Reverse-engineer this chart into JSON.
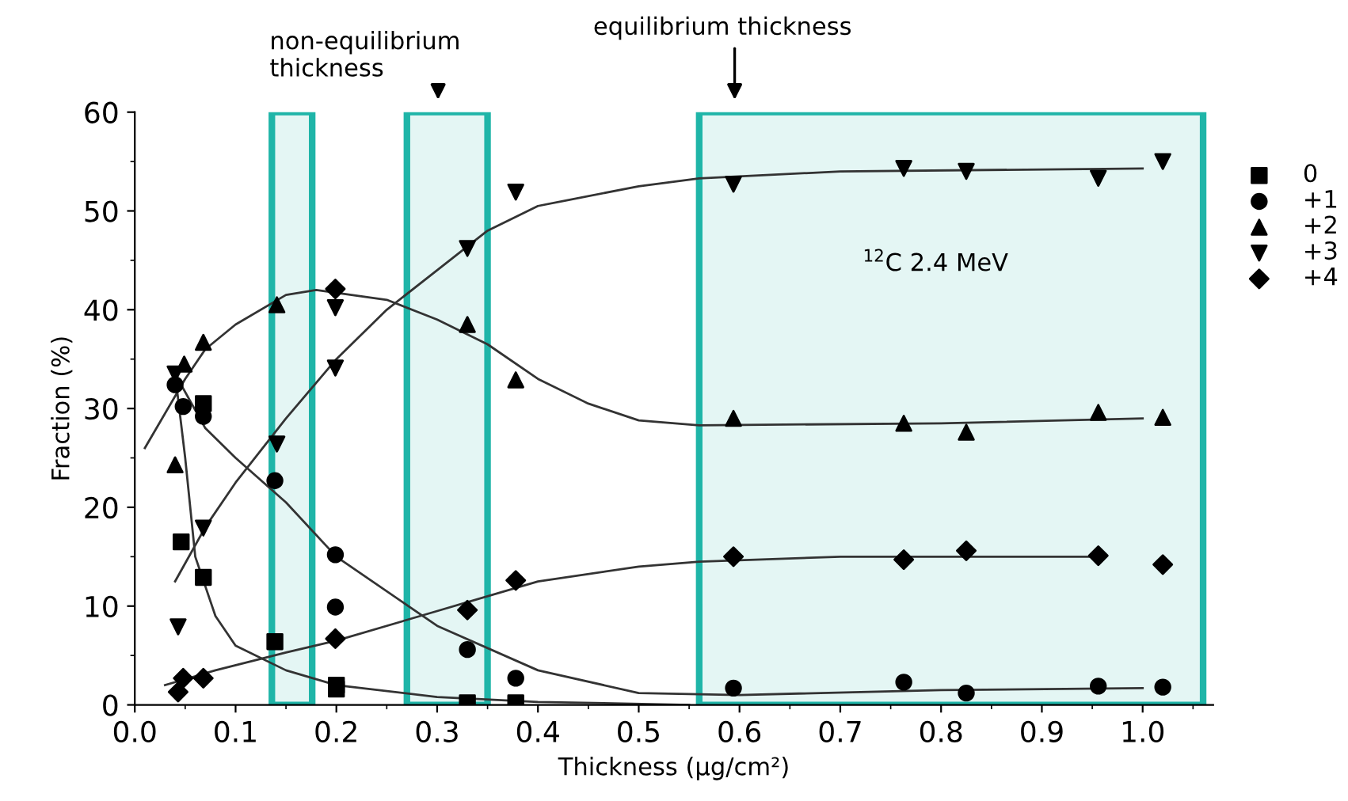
{
  "chart_data": {
    "type": "scatter",
    "xlabel": "Thickness (µg/cm²)",
    "ylabel": "Fraction (%)",
    "xlim": [
      0,
      1.07
    ],
    "ylim": [
      0,
      60
    ],
    "xticks": [
      {
        "value": 0,
        "label": "0.0"
      },
      0.1,
      0.2,
      0.3,
      0.4,
      0.5,
      0.6,
      0.7,
      0.8,
      0.9,
      {
        "value": 1,
        "label": "1.0"
      }
    ],
    "yticks": [
      0,
      10,
      20,
      30,
      40,
      50,
      60
    ],
    "legend": "right",
    "grid": false,
    "series": [
      {
        "name": "0",
        "color": "#000000",
        "marker": "square",
        "x": [
          0.046,
          0.068,
          0.068,
          0.139,
          0.2,
          0.2,
          0.33,
          0.378
        ],
        "values": [
          16.5,
          12.9,
          30.5,
          6.4,
          1.6,
          2.0,
          0.2,
          0.2
        ]
      },
      {
        "name": "+1",
        "color": "#000000",
        "marker": "circle",
        "x": [
          0.04,
          0.048,
          0.068,
          0.139,
          0.199,
          0.199,
          0.33,
          0.378,
          0.594,
          0.763,
          0.825,
          0.956,
          1.02
        ],
        "values": [
          32.4,
          30.2,
          29.2,
          22.7,
          15.2,
          9.9,
          5.6,
          2.7,
          1.7,
          2.3,
          1.2,
          1.9,
          1.8
        ]
      },
      {
        "name": "+2",
        "color": "#000000",
        "marker": "triangle",
        "x": [
          0.04,
          0.049,
          0.068,
          0.141,
          0.33,
          0.378,
          0.594,
          0.763,
          0.825,
          0.956,
          1.02
        ],
        "values": [
          24.3,
          34.5,
          36.7,
          40.5,
          38.5,
          32.9,
          29.0,
          28.5,
          27.6,
          29.6,
          29.1
        ]
      },
      {
        "name": "+3",
        "color": "#000000",
        "marker": "triangle_down",
        "x": [
          0.04,
          0.043,
          0.068,
          0.141,
          0.199,
          0.199,
          0.33,
          0.378,
          0.594,
          0.763,
          0.825,
          0.956,
          1.02
        ],
        "values": [
          33.5,
          7.9,
          17.9,
          26.4,
          34.1,
          40.2,
          46.2,
          51.9,
          52.7,
          54.3,
          54.0,
          53.3,
          55.0
        ]
      },
      {
        "name": "+4",
        "color": "#000000",
        "marker": "diamond",
        "x": [
          0.043,
          0.048,
          0.068,
          0.199,
          0.199,
          0.33,
          0.378,
          0.594,
          0.763,
          0.825,
          0.956,
          1.02
        ],
        "values": [
          1.3,
          2.7,
          2.7,
          6.7,
          42.1,
          9.6,
          12.6,
          15.0,
          14.7,
          15.6,
          15.1,
          14.2
        ]
      },
      {
        "type": "line",
        "color": "#333333",
        "x": [
          0.04,
          0.05,
          0.06,
          0.08,
          0.1,
          0.15,
          0.2,
          0.3,
          0.4,
          0.55
        ],
        "values": [
          33.5,
          25,
          15,
          9,
          6,
          3.5,
          2,
          0.8,
          0.3,
          0
        ]
      },
      {
        "type": "line",
        "color": "#333333",
        "x": [
          0.04,
          0.07,
          0.1,
          0.15,
          0.2,
          0.3,
          0.4,
          0.5,
          0.6,
          0.8,
          1.0
        ],
        "values": [
          33.5,
          28,
          25,
          20.5,
          15,
          8,
          3.5,
          1.2,
          1,
          1.5,
          1.7
        ]
      },
      {
        "type": "line",
        "color": "#333333",
        "x": [
          0.01,
          0.05,
          0.07,
          0.1,
          0.15,
          0.18,
          0.25,
          0.3,
          0.35,
          0.4,
          0.45,
          0.5,
          0.56,
          0.8,
          1.0
        ],
        "values": [
          26,
          33,
          36,
          38.5,
          41.5,
          42,
          41,
          39,
          36.5,
          33,
          30.5,
          28.8,
          28.3,
          28.5,
          29
        ]
      },
      {
        "type": "line",
        "color": "#333333",
        "x": [
          0.04,
          0.07,
          0.1,
          0.15,
          0.2,
          0.25,
          0.3,
          0.35,
          0.4,
          0.5,
          0.56,
          0.7,
          1.0
        ],
        "values": [
          12.5,
          18,
          22.5,
          29,
          35,
          40,
          44,
          48,
          50.5,
          52.5,
          53.3,
          54,
          54.3
        ]
      },
      {
        "type": "line",
        "color": "#333333",
        "x": [
          0.03,
          0.08,
          0.15,
          0.2,
          0.3,
          0.4,
          0.5,
          0.56,
          0.7,
          0.95
        ],
        "values": [
          2,
          3.5,
          5.3,
          6.5,
          9.5,
          12.5,
          14,
          14.5,
          15,
          15
        ]
      }
    ],
    "bands": [
      {
        "axis": "x",
        "from": 0.136,
        "to": 0.176,
        "color": "#1fb5a8"
      },
      {
        "axis": "x",
        "from": 0.27,
        "to": 0.35,
        "color": "#1fb5a8"
      },
      {
        "axis": "x",
        "from": 0.56,
        "to": 1.06,
        "color": "#1fb5a8"
      }
    ],
    "annotations": [
      "non-equilibrium\nthickness",
      "equilibrium thickness",
      "$^{12}$C 2.4 MeV"
    ]
  }
}
